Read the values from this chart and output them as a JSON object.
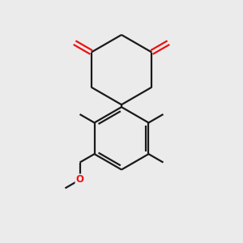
{
  "bg_color": "#ebebeb",
  "bond_color": "#1a1a1a",
  "o_color": "#ee1111",
  "line_width": 1.6,
  "figsize": [
    3.0,
    3.0
  ],
  "dpi": 100,
  "xlim": [
    0,
    10
  ],
  "ylim": [
    0,
    10
  ]
}
